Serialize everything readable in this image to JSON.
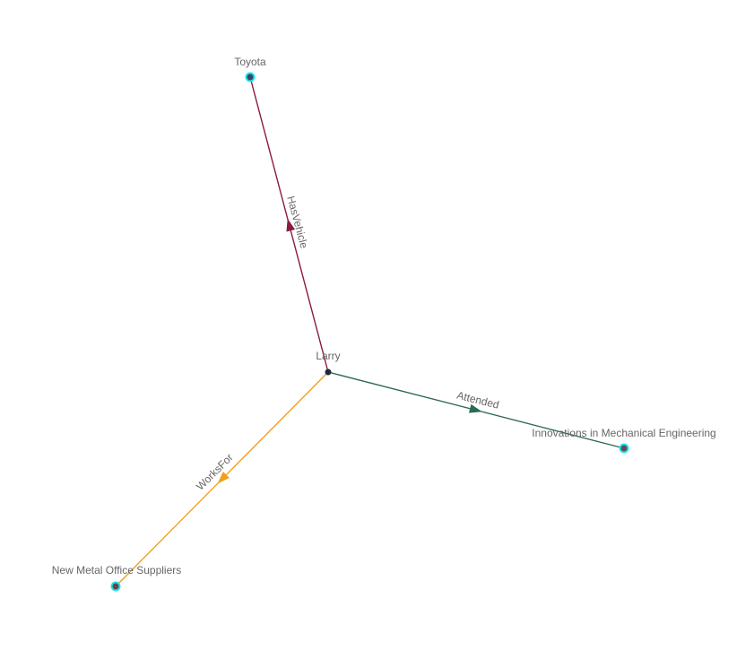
{
  "graph": {
    "nodes": [
      {
        "id": "larry",
        "label": "Larry",
        "fill": "#1c2a3a",
        "ring": null
      },
      {
        "id": "toyota",
        "label": "Toyota",
        "fill": "#3c4563",
        "ring": "#19e6f0"
      },
      {
        "id": "innovations",
        "label": "Innovations in Mechanical Engineering",
        "fill": "#6b4a4a",
        "ring": "#19e6f0"
      },
      {
        "id": "newmetal",
        "label": "New Metal Office Suppliers",
        "fill": "#6b4545",
        "ring": "#19e6f0"
      }
    ],
    "edges": [
      {
        "id": "hasvehicle",
        "source": "larry",
        "target": "toyota",
        "label": "HasVehicle",
        "color": "#8a1b42"
      },
      {
        "id": "attended",
        "source": "larry",
        "target": "innovations",
        "label": "Attended",
        "color": "#2c6a55"
      },
      {
        "id": "worksfor",
        "source": "larry",
        "target": "newmetal",
        "label": "WorksFor",
        "color": "#f0a01e"
      }
    ]
  }
}
